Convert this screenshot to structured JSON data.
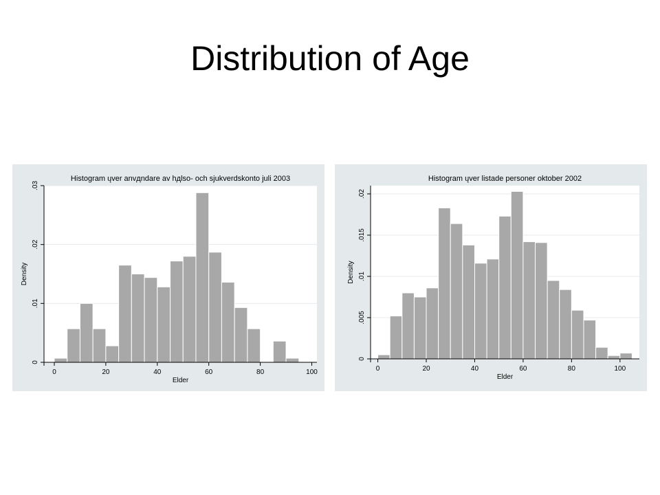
{
  "slide": {
    "title": "Distribution of Age"
  },
  "colors": {
    "panel_bg": "#e4eaec",
    "plot_bg": "#ffffff",
    "bar_fill": "#a8a8a8",
    "bar_stroke": "#ffffff",
    "grid": "#e4eaec",
    "axis": "#000000"
  },
  "chart_data": [
    {
      "type": "bar",
      "title": "Histogram ųver anvдndare av hдlso- och sjukverdskonto juli 2003",
      "xlabel": "Elder",
      "ylabel": "Density",
      "xlim": [
        -4,
        102
      ],
      "ylim": [
        0,
        0.03
      ],
      "xticks": [
        0,
        20,
        40,
        60,
        80,
        100
      ],
      "yticks": [
        0,
        0.01,
        0.02,
        0.03
      ],
      "xtick_labels": [
        "0",
        "20",
        "40",
        "60",
        "80",
        "100"
      ],
      "ytick_labels": [
        "0",
        ".01",
        ".02",
        ".03"
      ],
      "grid": true,
      "bin_width": 5,
      "bins_start": [
        0,
        5,
        10,
        15,
        20,
        25,
        30,
        35,
        40,
        45,
        50,
        55,
        60,
        65,
        70,
        75,
        80,
        85,
        90
      ],
      "values": [
        0.0007,
        0.0057,
        0.01,
        0.0057,
        0.0028,
        0.0165,
        0.015,
        0.0144,
        0.0128,
        0.0172,
        0.018,
        0.0288,
        0.0187,
        0.0136,
        0.0093,
        0.0057,
        0.0,
        0.0036,
        0.0007
      ]
    },
    {
      "type": "bar",
      "title": "Histogram ųver listade personer oktober 2002",
      "xlabel": "Elder",
      "ylabel": "Density",
      "xlim": [
        -3,
        108
      ],
      "ylim": [
        0,
        0.021
      ],
      "xticks": [
        0,
        20,
        40,
        60,
        80,
        100
      ],
      "yticks": [
        0,
        0.005,
        0.01,
        0.015,
        0.02
      ],
      "xtick_labels": [
        "0",
        "20",
        "40",
        "60",
        "80",
        "100"
      ],
      "ytick_labels": [
        "0",
        ".005",
        ".01",
        ".015",
        ".02"
      ],
      "grid": true,
      "bin_width": 5,
      "bins_start": [
        0,
        5,
        10,
        15,
        20,
        25,
        30,
        35,
        40,
        45,
        50,
        55,
        60,
        65,
        70,
        75,
        80,
        85,
        90,
        95,
        100
      ],
      "values": [
        0.0005,
        0.0052,
        0.008,
        0.0075,
        0.0086,
        0.0183,
        0.0164,
        0.0138,
        0.0116,
        0.0121,
        0.0173,
        0.0203,
        0.0142,
        0.0141,
        0.0095,
        0.0084,
        0.0059,
        0.0047,
        0.0014,
        0.0004,
        0.0007
      ]
    }
  ]
}
